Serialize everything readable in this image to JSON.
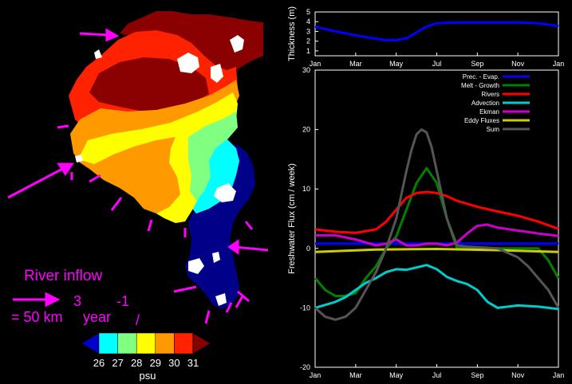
{
  "map_panel": {
    "inflow_title": "River inflow",
    "scale_prefix": "= 50 km",
    "scale_exp_3": "3",
    "scale_year": "year",
    "scale_exp_neg1": "-1",
    "scale_trailing_mark": "/",
    "colorbar": {
      "ticks": [
        "26",
        "27",
        "28",
        "29",
        "30",
        "31"
      ],
      "unit": "psu",
      "colors": [
        "#0000cc",
        "#00ffff",
        "#80ff80",
        "#ffff00",
        "#ff9900",
        "#ff2200",
        "#880000"
      ]
    },
    "zone_colors": {
      "deep_red": "#8b0000",
      "red": "#ff2200",
      "orange": "#ff9900",
      "yellow": "#ffff00",
      "light_green": "#80ff80",
      "cyan": "#00ffff",
      "navy": "#000088",
      "land": "#ffffff",
      "arrow": "#ff00ff"
    }
  },
  "chart_data": [
    {
      "type": "line",
      "title": "",
      "ylabel": "Thickness (m)",
      "xlabel": "",
      "x_ticks": [
        "Jan",
        "Mar",
        "May",
        "Jul",
        "Sep",
        "Nov",
        "Jan"
      ],
      "y_ticks": [
        "1",
        "2",
        "3",
        "4",
        "5"
      ],
      "ylim": [
        0.5,
        5
      ],
      "xlim": [
        0,
        12
      ],
      "series": [
        {
          "name": "Thickness",
          "color": "#0000ff",
          "x": [
            0,
            1,
            2,
            3,
            3.5,
            4,
            4.5,
            5,
            5.5,
            6,
            7,
            8,
            9,
            10,
            11,
            12
          ],
          "values": [
            3.5,
            3.0,
            2.6,
            2.25,
            2.1,
            2.1,
            2.3,
            2.9,
            3.5,
            3.85,
            3.9,
            3.9,
            3.9,
            3.9,
            3.85,
            3.55
          ]
        }
      ]
    },
    {
      "type": "line",
      "title": "",
      "ylabel": "Freshwater Flux (cm / week)",
      "xlabel": "",
      "x_ticks": [
        "Jan",
        "Mar",
        "May",
        "Jul",
        "Sep",
        "Nov",
        "Jan"
      ],
      "y_ticks": [
        "-20",
        "-10",
        "0",
        "10",
        "20",
        "30"
      ],
      "ylim": [
        -20,
        30
      ],
      "xlim": [
        0,
        12
      ],
      "legend_position": "top-right",
      "series": [
        {
          "name": "Prec. - Evap.",
          "color": "#0000ff",
          "x": [
            0,
            3,
            6,
            9,
            12
          ],
          "values": [
            0.8,
            0.8,
            0.8,
            0.8,
            0.8
          ]
        },
        {
          "name": "Melt - Growth",
          "color": "#008000",
          "x": [
            0,
            0.5,
            1,
            1.5,
            2,
            2.5,
            3,
            3.5,
            4,
            4.5,
            5,
            5.5,
            6,
            6.5,
            7,
            7.5,
            8,
            9,
            10,
            10.5,
            11,
            11.5,
            12
          ],
          "values": [
            -5,
            -7,
            -8,
            -8,
            -7.5,
            -5,
            -3,
            0,
            2,
            6.5,
            11,
            13.5,
            11,
            5,
            0,
            0,
            0,
            0,
            0,
            0,
            0,
            -2,
            -5
          ]
        },
        {
          "name": "Rivers",
          "color": "#ff0000",
          "x": [
            0,
            1,
            2,
            3,
            3.5,
            4,
            4.5,
            5,
            5.5,
            6,
            6.5,
            7,
            7.5,
            8,
            9,
            10,
            11,
            12
          ],
          "values": [
            3.2,
            2.8,
            2.6,
            3.2,
            4.5,
            6.5,
            8.5,
            9.3,
            9.5,
            9.3,
            8.8,
            8.0,
            7.5,
            7.0,
            6.2,
            5.5,
            4.5,
            3.3
          ]
        },
        {
          "name": "Advection",
          "color": "#00cccc",
          "x": [
            0,
            0.5,
            1,
            1.5,
            2,
            2.5,
            3,
            3.5,
            4,
            4.5,
            5,
            5.5,
            6,
            6.5,
            7,
            7.5,
            8,
            8.5,
            9,
            10,
            11,
            12
          ],
          "values": [
            -10,
            -9.5,
            -9,
            -8.2,
            -7,
            -5.8,
            -5,
            -4,
            -3.5,
            -3.6,
            -3.2,
            -2.8,
            -3.5,
            -4.8,
            -5.5,
            -6.0,
            -7,
            -9,
            -10,
            -9.6,
            -9.8,
            -10.2
          ]
        },
        {
          "name": "Ekman",
          "color": "#cc00cc",
          "x": [
            0,
            1,
            2,
            3,
            3.5,
            4,
            4.5,
            5,
            5.5,
            6,
            6.5,
            7,
            7.5,
            8,
            8.5,
            9,
            10,
            11,
            12
          ],
          "values": [
            2.2,
            2.2,
            1.5,
            0.5,
            0.8,
            1.5,
            0.5,
            0.5,
            0.8,
            0.8,
            0.5,
            1.0,
            2.5,
            3.8,
            4.0,
            3.5,
            3.0,
            2.5,
            2.1
          ]
        },
        {
          "name": "Eddy Fluxes",
          "color": "#cccc00",
          "x": [
            0,
            3,
            6,
            9,
            12
          ],
          "values": [
            -0.6,
            -0.2,
            -0.1,
            -0.3,
            -0.6
          ]
        },
        {
          "name": "Sum",
          "color": "#555555",
          "x": [
            0,
            0.5,
            1,
            1.5,
            2,
            2.5,
            3,
            3.5,
            4,
            4.25,
            4.5,
            4.75,
            5,
            5.25,
            5.5,
            5.75,
            6,
            6.5,
            7,
            7.5,
            8,
            9,
            10,
            10.5,
            11,
            11.5,
            12
          ],
          "values": [
            -10,
            -11.5,
            -12,
            -11.5,
            -10,
            -7,
            -4,
            0,
            5,
            9,
            13,
            16.5,
            19.2,
            20,
            19.5,
            17,
            13,
            5,
            0.5,
            0.3,
            0.2,
            0,
            -1.5,
            -3,
            -5,
            -7,
            -10
          ]
        }
      ]
    }
  ]
}
